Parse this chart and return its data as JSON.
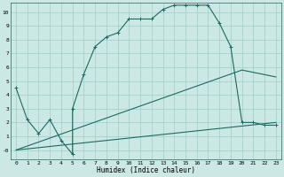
{
  "xlabel": "Humidex (Indice chaleur)",
  "bg_color": "#cce8e4",
  "grid_color": "#9dceca",
  "line_color": "#1a6b60",
  "xlim": [
    -0.5,
    23.5
  ],
  "ylim": [
    -0.7,
    10.7
  ],
  "xticks": [
    0,
    1,
    2,
    3,
    4,
    5,
    6,
    7,
    8,
    9,
    10,
    11,
    12,
    13,
    14,
    15,
    16,
    17,
    18,
    19,
    20,
    21,
    22,
    23
  ],
  "yticks": [
    0,
    1,
    2,
    3,
    4,
    5,
    6,
    7,
    8,
    9,
    10
  ],
  "ytick_labels": [
    "-0",
    "1",
    "2",
    "3",
    "4",
    "5",
    "6",
    "7",
    "8",
    "9",
    "10"
  ],
  "line1_x": [
    0,
    1,
    2,
    3,
    4,
    5,
    5,
    6,
    7,
    8,
    9,
    10,
    11,
    12,
    13,
    14,
    15,
    16,
    17,
    18,
    19,
    20,
    21,
    22,
    23
  ],
  "line1_y": [
    4.5,
    2.2,
    1.2,
    2.2,
    0.7,
    -0.3,
    3.0,
    5.5,
    7.5,
    8.2,
    8.5,
    9.5,
    9.5,
    9.5,
    10.2,
    10.5,
    10.5,
    10.5,
    10.5,
    9.2,
    7.5,
    2.0,
    2.0,
    1.8,
    1.8
  ],
  "line2_x": [
    0,
    23
  ],
  "line2_y": [
    0,
    2.0
  ],
  "line3_x": [
    0,
    20,
    23
  ],
  "line3_y": [
    0,
    5.8,
    5.3
  ],
  "fontsize_ticks": 4.5,
  "fontsize_xlabel": 5.5
}
